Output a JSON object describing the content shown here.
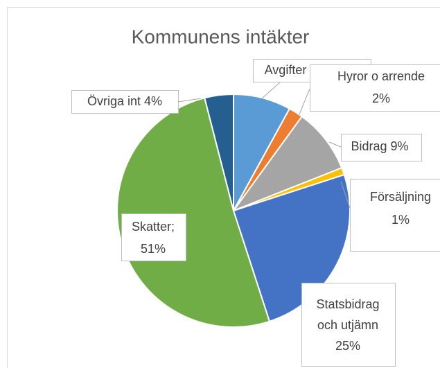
{
  "chart_data": {
    "type": "pie",
    "title": "Kommunens intäkter",
    "values": [
      8,
      2,
      9,
      1,
      25,
      51,
      4
    ],
    "value_labels": [
      [
        "Avgifter o ers 8%"
      ],
      [
        "Hyror o arrende",
        "2%"
      ],
      [
        "Bidrag 9%"
      ],
      [
        "Försäljning",
        "1%"
      ],
      [
        "Statsbidrag",
        "och utjämn",
        "25%"
      ],
      [
        "Skatter;",
        "51%"
      ],
      [
        "Övriga int 4%"
      ]
    ],
    "colors": [
      "#5b9bd5",
      "#ed7d31",
      "#a5a5a5",
      "#ffc000",
      "#4472c4",
      "#70ad47",
      "#255e91"
    ]
  }
}
